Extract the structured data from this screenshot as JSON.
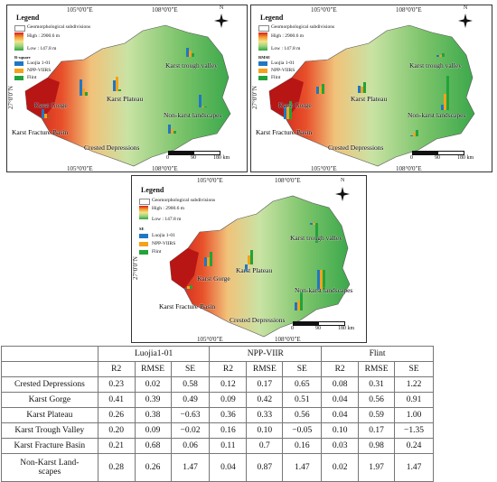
{
  "maps": [
    {
      "id": "r-square",
      "legend_title": "Legend",
      "subdivisions_label": "Geomorphological subdivisions",
      "high_label": "High : 2900.6 m",
      "low_label": "Low : 147.8 m",
      "metric_label": "R-square",
      "series": [
        "Luojia 1-01",
        "NPP-VIIRS",
        "Flint"
      ],
      "top_lon": [
        "105°0'0\"E",
        "108°0'0\"E"
      ],
      "bottom_lon": [
        "105°0'0\"E",
        "108°0'0\"E"
      ],
      "left_lat": "27°0'0\"N",
      "scale": [
        "0",
        "90",
        "180 km"
      ]
    },
    {
      "id": "rmse",
      "legend_title": "Legend",
      "subdivisions_label": "Geomorphological subdivisions",
      "high_label": "High : 2900.6 m",
      "low_label": "Low : 147.8 m",
      "metric_label": "RMSE",
      "series": [
        "Luojia 1-01",
        "NPP-VIIRS",
        "Flint"
      ],
      "top_lon": [
        "105°0'0\"E",
        "108°0'0\"E"
      ],
      "bottom_lon": [
        "105°0'0\"E",
        "108°0'0\"E"
      ],
      "left_lat": "27°0'0\"N",
      "scale": [
        "0",
        "90",
        "180 km"
      ]
    },
    {
      "id": "se",
      "legend_title": "Legend",
      "subdivisions_label": "Geomorphological subdivisions",
      "high_label": "High : 2900.6 m",
      "low_label": "Low : 147.8 m",
      "metric_label": "SE",
      "series": [
        "Luojia 1-01",
        "NPP-VIIRS",
        "Flint"
      ],
      "top_lon": [
        "105°0'0\"E",
        "108°0'0\"E"
      ],
      "bottom_lon": [
        "105°0'0\"E",
        "108°0'0\"E"
      ],
      "left_lat": "27°0'0\"N",
      "scale": [
        "0",
        "90",
        "180 km"
      ]
    }
  ],
  "region_labels": {
    "trough_valley": "Karst trough valley",
    "plateau": "Karst Plateau",
    "gorge": "Karst Gorge",
    "non_karst": "Non-karst landscapes",
    "fracture_basin": "Karst Fracture Basin",
    "crested": "Crested Depressions"
  },
  "compass_n": "N",
  "colors": {
    "luojia": "#1f77c4",
    "npp": "#f4a21a",
    "flint": "#21a33a",
    "high": "#d61c1c",
    "low": "#2fa640"
  },
  "table": {
    "groups": [
      "Luojia1-01",
      "NPP-VIIR",
      "Flint"
    ],
    "metrics": [
      "R2",
      "RMSE",
      "SE",
      "R2",
      "RMSE",
      "SE",
      "R2",
      "RMSE",
      "SE"
    ],
    "rows": [
      {
        "name": "Crested Depressions",
        "values": [
          "0.23",
          "0.02",
          "0.58",
          "0.12",
          "0.17",
          "0.65",
          "0.08",
          "0.31",
          "1.22"
        ]
      },
      {
        "name": "Karst Gorge",
        "values": [
          "0.41",
          "0.39",
          "0.49",
          "0.09",
          "0.42",
          "0.51",
          "0.04",
          "0.56",
          "0.91"
        ]
      },
      {
        "name": "Karst Plateau",
        "values": [
          "0.26",
          "0.38",
          "−0.63",
          "0.36",
          "0.33",
          "0.56",
          "0.04",
          "0.59",
          "1.00"
        ]
      },
      {
        "name": "Karst Trough Valley",
        "values": [
          "0.20",
          "0.09",
          "−0.02",
          "0.16",
          "0.10",
          "−0.05",
          "0.10",
          "0.17",
          "−1.35"
        ]
      },
      {
        "name": "Karst Fracture Basin",
        "values": [
          "0.21",
          "0.68",
          "0.06",
          "0.11",
          "0.7",
          "0.16",
          "0.03",
          "0.98",
          "0.24"
        ]
      },
      {
        "name": "Non-Karst Land-\nscapes",
        "values": [
          "0.28",
          "0.26",
          "1.47",
          "0.04",
          "0.87",
          "1.47",
          "0.02",
          "1.97",
          "1.47"
        ]
      }
    ]
  }
}
